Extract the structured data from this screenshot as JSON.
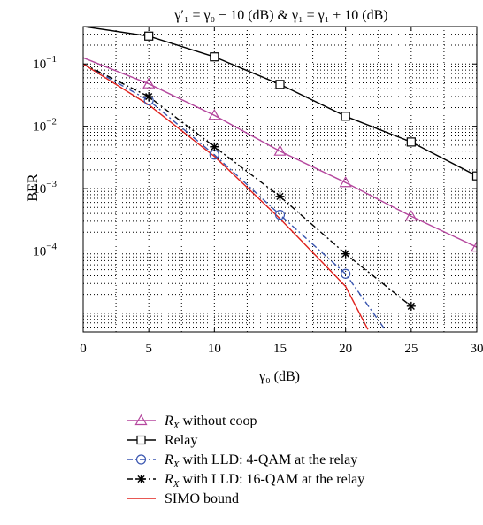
{
  "chart_data": {
    "type": "line",
    "title": "γ′₁ = γ₀ − 10 (dB) & γ₁ = γ₁ + 10 (dB)",
    "xlabel": "γ₀ (dB)",
    "ylabel": "BER",
    "xlim": [
      0,
      30
    ],
    "ylim_log10": [
      -5.3,
      -0.4
    ],
    "yscale": "log",
    "x_ticks": [
      "0",
      "5",
      "10",
      "15",
      "20",
      "25",
      "30"
    ],
    "y_ticks": [
      {
        "base": "10",
        "exp": "−1",
        "log": -1
      },
      {
        "base": "10",
        "exp": "−2",
        "log": -2
      },
      {
        "base": "10",
        "exp": "−3",
        "log": -3
      },
      {
        "base": "10",
        "exp": "−4",
        "log": -4
      }
    ],
    "grid": true,
    "legend_position": "below",
    "series": [
      {
        "name": "R_X without coop",
        "legend_main": "R",
        "legend_sub": "X",
        "legend_rest": " without coop",
        "color": "#b5479e",
        "dash": "",
        "marker": "triangle",
        "x": [
          0,
          5,
          10,
          15,
          20,
          25,
          30
        ],
        "y": [
          0.126,
          0.048,
          0.015,
          0.004,
          0.00125,
          0.00036,
          0.000115
        ],
        "marker_x": [
          5,
          10,
          15,
          20,
          25,
          30
        ]
      },
      {
        "name": "Relay",
        "legend_main": "Relay",
        "legend_sub": "",
        "legend_rest": "",
        "color": "#000000",
        "dash": "",
        "marker": "square",
        "x": [
          0,
          5,
          10,
          15,
          20,
          25,
          30
        ],
        "y": [
          0.4,
          0.28,
          0.13,
          0.047,
          0.0145,
          0.0056,
          0.0016
        ],
        "marker_x": [
          5,
          10,
          15,
          20,
          25,
          30
        ]
      },
      {
        "name": "R_X with LLD: 4-QAM at the relay",
        "legend_main": "R",
        "legend_sub": "X",
        "legend_rest": " with LLD: 4-QAM at the relay",
        "color": "#3a56b0",
        "dash": "7,3,2,3",
        "marker": "circle",
        "x": [
          0,
          5,
          10,
          15,
          20,
          23
        ],
        "y": [
          0.1,
          0.026,
          0.0035,
          0.00038,
          4.3e-05,
          5.5e-06
        ],
        "marker_x": [
          5,
          10,
          15,
          20
        ]
      },
      {
        "name": "R_X with LLD: 16-QAM at the relay",
        "legend_main": "R",
        "legend_sub": "X",
        "legend_rest": " with LLD: 16-QAM at the relay",
        "color": "#000000",
        "dash": "7,3,2,3",
        "marker": "star",
        "x": [
          0,
          5,
          10,
          15,
          20,
          25
        ],
        "y": [
          0.1,
          0.03,
          0.0047,
          0.00075,
          9e-05,
          1.3e-05
        ],
        "marker_x": [
          5,
          10,
          15,
          20,
          25
        ]
      },
      {
        "name": "SIMO bound",
        "legend_main": "SIMO bound",
        "legend_sub": "",
        "legend_rest": "",
        "color": "#e0201c",
        "dash": "",
        "marker": "none",
        "x": [
          0,
          5,
          10,
          15,
          20,
          21.7
        ],
        "y": [
          0.1,
          0.022,
          0.0033,
          0.00033,
          2.7e-05,
          5.5e-06
        ],
        "marker_x": []
      }
    ]
  }
}
